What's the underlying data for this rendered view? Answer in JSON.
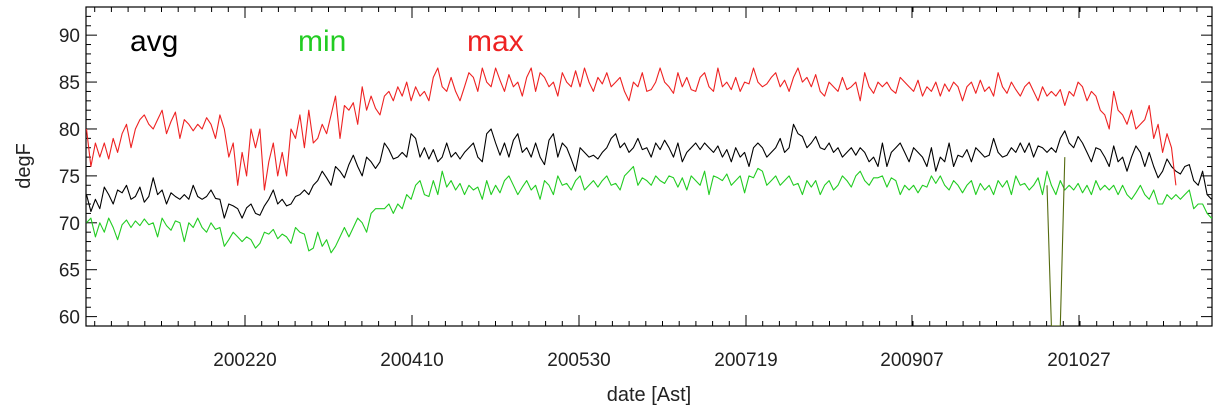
{
  "chart_data": {
    "type": "line",
    "title": "",
    "xlabel": "date [Ast]",
    "ylabel": "degF",
    "xticks": [
      "200220",
      "200410",
      "200530",
      "200719",
      "200907",
      "201027"
    ],
    "yticks": [
      "60",
      "65",
      "70",
      "75",
      "80",
      "85",
      "90"
    ],
    "ylim": [
      59,
      93
    ],
    "grid": false,
    "legend": "top-left",
    "series": [
      {
        "name": "avg",
        "color": "#000000",
        "values": [
          73.0,
          71.2,
          72.5,
          71.5,
          73.8,
          73.0,
          72.0,
          73.5,
          73.2,
          74.0,
          72.5,
          72.8,
          73.8,
          72.2,
          72.8,
          74.8,
          73.0,
          73.5,
          72.0,
          73.2,
          72.8,
          72.5,
          73.0,
          72.5,
          74.0,
          72.8,
          72.5,
          72.8,
          73.5,
          72.6,
          72.5,
          70.5,
          72.0,
          71.8,
          71.5,
          70.5,
          71.6,
          72.0,
          71.0,
          70.8,
          71.8,
          72.5,
          73.5,
          72.0,
          72.5,
          71.8,
          72.0,
          72.8,
          73.0,
          73.5,
          73.0,
          74.0,
          74.5,
          75.5,
          74.8,
          74.0,
          76.0,
          75.5,
          74.8,
          76.2,
          77.2,
          76.0,
          75.0,
          77.0,
          76.5,
          75.8,
          76.5,
          78.5,
          77.8,
          76.8,
          77.0,
          77.5,
          77.0,
          79.5,
          79.0,
          77.0,
          78.0,
          76.8,
          77.8,
          76.5,
          77.0,
          78.5,
          77.0,
          77.5,
          76.8,
          77.5,
          78.0,
          78.5,
          77.0,
          76.5,
          79.5,
          80.0,
          78.5,
          77.2,
          78.5,
          77.0,
          78.8,
          79.5,
          77.5,
          78.0,
          77.0,
          78.5,
          77.0,
          76.2,
          78.8,
          79.5,
          77.0,
          78.5,
          78.0,
          76.8,
          75.5,
          78.0,
          77.5,
          77.0,
          77.2,
          76.8,
          77.5,
          78.0,
          79.0,
          79.5,
          78.0,
          78.5,
          77.5,
          78.0,
          79.0,
          77.8,
          78.0,
          77.0,
          78.5,
          77.8,
          78.8,
          78.0,
          77.0,
          78.5,
          76.5,
          77.5,
          78.0,
          78.5,
          77.8,
          78.5,
          78.0,
          77.5,
          78.2,
          77.0,
          77.8,
          76.5,
          78.0,
          77.0,
          77.5,
          76.0,
          78.0,
          78.5,
          78.0,
          77.0,
          77.5,
          78.0,
          79.0,
          77.5,
          78.0,
          80.5,
          79.5,
          79.2,
          78.0,
          78.5,
          79.2,
          78.0,
          77.8,
          78.5,
          77.5,
          78.0,
          77.0,
          77.5,
          78.0,
          77.2,
          78.0,
          77.5,
          76.5,
          77.0,
          76.0,
          78.5,
          76.0,
          77.5,
          78.0,
          78.5,
          77.5,
          76.5,
          78.0,
          77.5,
          77.0,
          76.0,
          78.0,
          75.5,
          77.0,
          76.5,
          78.5,
          76.0,
          77.2,
          77.0,
          77.8,
          76.5,
          78.0,
          77.5,
          77.0,
          77.2,
          79.0,
          77.5,
          77.0,
          77.2,
          78.0,
          77.5,
          78.5,
          77.5,
          78.5,
          77.0,
          78.2,
          78.0,
          77.5,
          78.0,
          77.5,
          79.0,
          79.8,
          78.5,
          78.0,
          79.2,
          78.5,
          77.5,
          76.5,
          78.0,
          77.8,
          77.0,
          76.0,
          78.2,
          76.5,
          77.0,
          75.5,
          77.0,
          78.2,
          77.5,
          76.0,
          77.5,
          76.0,
          74.8,
          75.5,
          76.8,
          76.0,
          75.5,
          75.2,
          76.0,
          76.2,
          74.5,
          74.0,
          75.5,
          73.0,
          72.5
        ]
      },
      {
        "name": "min",
        "color": "#22cc22",
        "values": [
          70.0,
          70.5,
          68.5,
          70.0,
          69.0,
          70.5,
          69.5,
          68.2,
          69.8,
          70.3,
          69.5,
          70.2,
          69.7,
          70.4,
          69.8,
          70.0,
          68.5,
          70.5,
          69.7,
          69.2,
          70.2,
          70.0,
          68.0,
          70.0,
          69.5,
          70.5,
          69.5,
          69.0,
          70.0,
          69.3,
          69.5,
          67.5,
          68.2,
          69.0,
          68.5,
          68.0,
          68.5,
          68.2,
          67.3,
          67.8,
          69.0,
          68.8,
          69.3,
          68.3,
          68.8,
          68.5,
          67.8,
          69.5,
          69.0,
          68.8,
          67.0,
          67.3,
          69.0,
          67.5,
          68.2,
          66.8,
          67.5,
          68.5,
          69.5,
          68.5,
          69.5,
          70.5,
          70.0,
          69.0,
          71.0,
          71.5,
          71.5,
          71.5,
          72.0,
          71.0,
          72.0,
          71.5,
          73.0,
          72.5,
          74.0,
          74.5,
          73.0,
          72.8,
          74.5,
          73.0,
          75.5,
          73.8,
          74.5,
          73.5,
          74.2,
          73.0,
          74.0,
          73.5,
          73.8,
          72.5,
          74.5,
          73.0,
          74.0,
          73.2,
          74.5,
          75.0,
          74.0,
          73.0,
          73.8,
          74.5,
          73.5,
          74.0,
          72.5,
          74.5,
          74.0,
          73.0,
          75.0,
          74.0,
          74.2,
          73.5,
          74.5,
          75.0,
          73.5,
          74.0,
          74.5,
          73.8,
          74.5,
          75.0,
          74.0,
          74.2,
          73.5,
          75.0,
          75.5,
          76.0,
          74.0,
          74.8,
          74.5,
          74.0,
          75.0,
          74.5,
          74.2,
          75.0,
          74.8,
          73.8,
          74.8,
          73.5,
          75.0,
          74.5,
          74.0,
          75.5,
          73.0,
          75.0,
          74.8,
          74.5,
          75.2,
          74.0,
          74.5,
          75.0,
          73.2,
          75.0,
          74.8,
          75.8,
          75.5,
          74.0,
          74.5,
          75.0,
          74.0,
          74.5,
          75.0,
          74.0,
          74.2,
          73.0,
          74.5,
          73.8,
          74.5,
          73.0,
          74.0,
          74.5,
          73.5,
          74.0,
          75.0,
          74.5,
          73.8,
          75.0,
          75.5,
          74.5,
          74.0,
          74.8,
          74.8,
          75.0,
          73.8,
          74.8,
          74.5,
          73.0,
          74.0,
          73.5,
          74.0,
          73.2,
          74.0,
          73.8,
          75.0,
          74.2,
          75.0,
          74.0,
          73.5,
          74.5,
          74.0,
          73.2,
          74.0,
          74.5,
          73.0,
          74.2,
          73.5,
          74.0,
          73.0,
          74.5,
          73.8,
          74.5,
          73.0,
          75.0,
          74.0,
          74.2,
          73.5,
          74.0,
          74.8,
          73.0,
          75.5,
          74.0,
          73.0,
          74.5,
          73.5,
          74.0,
          73.5,
          74.2,
          73.2,
          74.0,
          73.0,
          74.5,
          73.5,
          74.0,
          73.5,
          74.0,
          73.0,
          74.0,
          73.0,
          72.5,
          73.2,
          74.0,
          73.0,
          72.5,
          73.5,
          72.0,
          72.0,
          73.0,
          72.5,
          73.0,
          72.5,
          73.0,
          73.5,
          71.5,
          72.0,
          72.0,
          71.0,
          70.5,
          71.0,
          70.0,
          69.5
        ]
      },
      {
        "name": "max",
        "color": "#ee2222",
        "values": [
          80.0,
          76.0,
          78.5,
          77.0,
          78.5,
          76.8,
          79.0,
          77.5,
          79.5,
          80.5,
          78.0,
          80.0,
          81.0,
          81.5,
          80.5,
          80.0,
          81.0,
          82.0,
          79.5,
          80.8,
          81.8,
          79.0,
          81.0,
          80.5,
          79.8,
          80.5,
          80.0,
          81.2,
          80.5,
          79.0,
          81.5,
          80.0,
          77.0,
          78.5,
          74.0,
          77.5,
          75.0,
          80.0,
          78.0,
          80.0,
          73.5,
          76.5,
          78.5,
          75.0,
          77.5,
          75.0,
          80.0,
          79.0,
          81.5,
          78.0,
          82.0,
          78.5,
          79.0,
          80.5,
          79.5,
          81.5,
          83.5,
          79.0,
          82.5,
          82.0,
          82.8,
          80.5,
          84.5,
          82.0,
          83.5,
          82.2,
          81.5,
          83.5,
          84.0,
          83.0,
          84.5,
          83.5,
          85.0,
          83.0,
          84.5,
          83.5,
          84.0,
          83.0,
          85.5,
          86.5,
          84.5,
          84.0,
          85.5,
          84.0,
          83.0,
          84.5,
          86.0,
          85.5,
          84.0,
          86.5,
          85.0,
          84.5,
          86.5,
          85.2,
          84.0,
          85.8,
          84.5,
          85.0,
          83.5,
          85.5,
          86.5,
          84.0,
          86.0,
          85.5,
          84.5,
          85.0,
          83.5,
          86.0,
          85.0,
          84.5,
          86.2,
          84.5,
          86.5,
          85.0,
          84.0,
          85.5,
          84.8,
          86.0,
          84.5,
          85.0,
          85.5,
          84.0,
          83.0,
          85.0,
          84.5,
          86.0,
          84.0,
          84.2,
          85.0,
          86.5,
          85.0,
          84.5,
          83.8,
          86.0,
          84.5,
          85.5,
          84.2,
          84.0,
          85.5,
          86.0,
          84.5,
          84.0,
          86.5,
          84.5,
          85.0,
          84.2,
          85.5,
          84.0,
          85.0,
          84.8,
          86.5,
          85.0,
          84.5,
          84.8,
          85.5,
          86.0,
          84.5,
          85.2,
          84.0,
          85.5,
          86.5,
          85.0,
          85.5,
          84.5,
          85.8,
          84.0,
          83.5,
          85.0,
          84.5,
          84.0,
          85.5,
          84.2,
          84.5,
          85.0,
          83.0,
          86.0,
          84.5,
          83.8,
          85.0,
          84.5,
          85.0,
          84.2,
          83.8,
          85.5,
          85.0,
          84.5,
          84.0,
          85.2,
          83.5,
          84.5,
          84.0,
          85.0,
          83.5,
          84.8,
          84.0,
          85.0,
          84.5,
          83.0,
          84.5,
          85.0,
          83.8,
          85.2,
          84.0,
          84.5,
          83.5,
          86.0,
          84.5,
          83.8,
          85.0,
          84.2,
          83.5,
          84.5,
          85.0,
          84.0,
          83.0,
          84.5,
          83.5,
          84.0,
          83.5,
          84.2,
          82.5,
          84.0,
          83.5,
          85.0,
          84.5,
          83.0,
          84.0,
          83.5,
          82.0,
          81.5,
          80.0,
          84.0,
          82.0,
          81.5,
          80.5,
          82.0,
          80.0,
          80.5,
          81.0,
          82.5,
          79.0,
          80.5,
          77.5,
          79.5,
          78.0,
          74.0
        ]
      },
      {
        "name": "",
        "color": "#556b10",
        "x_index": [
          216,
          217,
          218,
          219,
          220
        ],
        "values": [
          74.0,
          59.0,
          59.0,
          59.0,
          77.0
        ]
      }
    ]
  }
}
